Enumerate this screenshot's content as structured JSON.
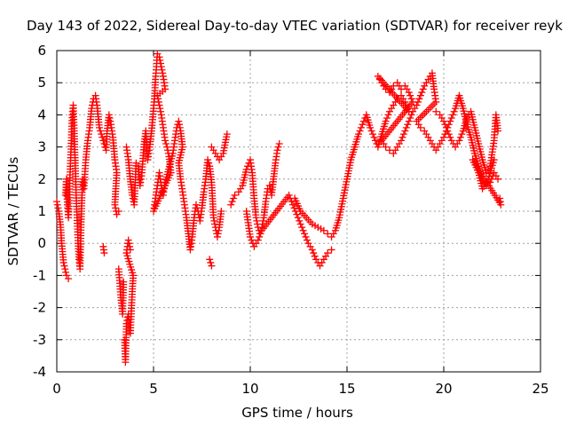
{
  "chart_data": {
    "type": "scatter",
    "title": "Day 143 of 2022, Sidereal Day-to-day VTEC variation (SDTVAR) for receiver reyk",
    "xlabel": "GPS time / hours",
    "ylabel": "SDTVAR / TECUs",
    "xlim": [
      0,
      25
    ],
    "ylim": [
      -4,
      6
    ],
    "xticks": [
      0,
      5,
      10,
      15,
      20,
      25
    ],
    "yticks": [
      -4,
      -3,
      -2,
      -1,
      0,
      1,
      2,
      3,
      4,
      5,
      6
    ],
    "grid": true,
    "marker": "+",
    "color": "#ff0000",
    "series": [
      {
        "name": "SDTVAR",
        "points": [
          [
            0.0,
            1.3
          ],
          [
            0.1,
            1.0
          ],
          [
            0.2,
            0.5
          ],
          [
            0.25,
            0.0
          ],
          [
            0.35,
            -0.6
          ],
          [
            0.5,
            -1.0
          ],
          [
            0.6,
            -1.1
          ],
          [
            0.45,
            1.5
          ],
          [
            0.5,
            2.0
          ],
          [
            0.55,
            1.2
          ],
          [
            0.6,
            0.8
          ],
          [
            0.65,
            1.6
          ],
          [
            0.7,
            2.4
          ],
          [
            0.75,
            3.2
          ],
          [
            0.8,
            4.0
          ],
          [
            0.85,
            4.3
          ],
          [
            0.9,
            3.5
          ],
          [
            0.95,
            2.5
          ],
          [
            1.0,
            1.5
          ],
          [
            1.05,
            0.8
          ],
          [
            1.1,
            0.0
          ],
          [
            1.15,
            -0.5
          ],
          [
            1.2,
            -0.8
          ],
          [
            1.25,
            0.5
          ],
          [
            1.3,
            1.5
          ],
          [
            1.35,
            2.0
          ],
          [
            1.4,
            1.7
          ],
          [
            1.5,
            2.6
          ],
          [
            1.6,
            3.2
          ],
          [
            1.7,
            3.6
          ],
          [
            1.8,
            4.2
          ],
          [
            1.9,
            4.5
          ],
          [
            2.0,
            4.6
          ],
          [
            2.1,
            4.2
          ],
          [
            2.2,
            3.6
          ],
          [
            2.3,
            3.4
          ],
          [
            2.4,
            3.2
          ],
          [
            2.5,
            3.0
          ],
          [
            2.4,
            -0.1
          ],
          [
            2.45,
            -0.3
          ],
          [
            2.55,
            2.9
          ],
          [
            2.6,
            3.5
          ],
          [
            2.7,
            4.0
          ],
          [
            2.8,
            3.7
          ],
          [
            2.9,
            3.3
          ],
          [
            3.0,
            2.6
          ],
          [
            3.1,
            2.2
          ],
          [
            3.0,
            1.2
          ],
          [
            3.1,
            0.9
          ],
          [
            3.2,
            1.0
          ],
          [
            3.2,
            -0.8
          ],
          [
            3.3,
            -1.6
          ],
          [
            3.4,
            -2.2
          ],
          [
            3.45,
            -1.2
          ],
          [
            3.5,
            -3.0
          ],
          [
            3.55,
            -3.7
          ],
          [
            3.6,
            -2.5
          ],
          [
            3.7,
            -2.2
          ],
          [
            3.8,
            -2.8
          ],
          [
            3.9,
            -1.5
          ],
          [
            3.95,
            -1.0
          ],
          [
            3.6,
            -0.3
          ],
          [
            3.7,
            0.1
          ],
          [
            3.8,
            -0.2
          ],
          [
            3.6,
            3.0
          ],
          [
            3.7,
            2.6
          ],
          [
            3.8,
            2.0
          ],
          [
            3.9,
            1.5
          ],
          [
            4.0,
            1.2
          ],
          [
            4.1,
            2.5
          ],
          [
            4.2,
            2.4
          ],
          [
            4.3,
            1.8
          ],
          [
            4.4,
            2.2
          ],
          [
            4.5,
            3.0
          ],
          [
            4.6,
            3.5
          ],
          [
            4.7,
            2.6
          ],
          [
            4.8,
            3.0
          ],
          [
            4.9,
            3.5
          ],
          [
            5.0,
            4.2
          ],
          [
            5.05,
            4.5
          ],
          [
            5.1,
            5.1
          ],
          [
            5.15,
            5.5
          ],
          [
            5.2,
            5.9
          ],
          [
            5.3,
            5.8
          ],
          [
            5.4,
            5.5
          ],
          [
            5.5,
            5.2
          ],
          [
            5.6,
            4.8
          ],
          [
            5.2,
            4.6
          ],
          [
            5.3,
            4.3
          ],
          [
            5.4,
            4.0
          ],
          [
            5.5,
            3.6
          ],
          [
            5.6,
            3.2
          ],
          [
            5.7,
            3.0
          ],
          [
            5.8,
            2.7
          ],
          [
            5.9,
            2.2
          ],
          [
            5.0,
            1.0
          ],
          [
            5.1,
            1.4
          ],
          [
            5.2,
            1.8
          ],
          [
            5.3,
            2.2
          ],
          [
            5.4,
            1.8
          ],
          [
            5.5,
            1.5
          ],
          [
            5.6,
            1.9
          ],
          [
            6.0,
            2.8
          ],
          [
            6.1,
            3.2
          ],
          [
            6.2,
            3.6
          ],
          [
            6.3,
            3.8
          ],
          [
            6.4,
            3.5
          ],
          [
            6.5,
            3.0
          ],
          [
            6.3,
            2.5
          ],
          [
            6.4,
            2.0
          ],
          [
            6.5,
            1.6
          ],
          [
            6.6,
            1.2
          ],
          [
            6.7,
            0.8
          ],
          [
            6.8,
            0.3
          ],
          [
            6.9,
            -0.2
          ],
          [
            7.0,
            0.2
          ],
          [
            7.1,
            0.8
          ],
          [
            7.2,
            1.2
          ],
          [
            7.3,
            1.0
          ],
          [
            7.4,
            0.7
          ],
          [
            7.5,
            1.1
          ],
          [
            7.6,
            1.6
          ],
          [
            7.7,
            2.0
          ],
          [
            7.8,
            2.6
          ],
          [
            7.9,
            2.4
          ],
          [
            8.0,
            1.9
          ],
          [
            8.1,
            0.8
          ],
          [
            8.2,
            0.5
          ],
          [
            8.3,
            0.2
          ],
          [
            8.4,
            0.5
          ],
          [
            8.5,
            1.0
          ],
          [
            8.0,
            3.0
          ],
          [
            8.2,
            2.8
          ],
          [
            8.4,
            2.6
          ],
          [
            8.6,
            2.8
          ],
          [
            8.8,
            3.4
          ],
          [
            7.9,
            -0.5
          ],
          [
            8.0,
            -0.7
          ],
          [
            9.0,
            1.2
          ],
          [
            9.2,
            1.5
          ],
          [
            9.4,
            1.6
          ],
          [
            9.6,
            1.8
          ],
          [
            9.8,
            2.3
          ],
          [
            10.0,
            2.6
          ],
          [
            10.1,
            2.2
          ],
          [
            10.2,
            1.4
          ],
          [
            10.3,
            0.8
          ],
          [
            10.4,
            0.5
          ],
          [
            10.5,
            0.3
          ],
          [
            10.6,
            0.5
          ],
          [
            10.7,
            0.8
          ],
          [
            10.8,
            1.3
          ],
          [
            10.9,
            1.7
          ],
          [
            11.0,
            1.8
          ],
          [
            11.1,
            1.5
          ],
          [
            11.2,
            2.0
          ],
          [
            11.3,
            2.5
          ],
          [
            11.4,
            2.9
          ],
          [
            11.5,
            3.1
          ],
          [
            9.8,
            1.0
          ],
          [
            10.0,
            0.2
          ],
          [
            10.2,
            -0.1
          ],
          [
            10.4,
            0.1
          ],
          [
            10.6,
            0.4
          ],
          [
            12.0,
            1.5
          ],
          [
            12.2,
            1.2
          ],
          [
            12.4,
            0.9
          ],
          [
            12.6,
            0.6
          ],
          [
            12.8,
            0.3
          ],
          [
            13.0,
            0.0
          ],
          [
            13.2,
            -0.2
          ],
          [
            13.4,
            -0.5
          ],
          [
            13.6,
            -0.7
          ],
          [
            13.8,
            -0.5
          ],
          [
            14.0,
            -0.3
          ],
          [
            14.2,
            -0.2
          ],
          [
            12.3,
            1.4
          ],
          [
            12.6,
            1.0
          ],
          [
            12.9,
            0.8
          ],
          [
            13.2,
            0.6
          ],
          [
            13.5,
            0.5
          ],
          [
            13.8,
            0.4
          ],
          [
            14.0,
            0.3
          ],
          [
            14.2,
            0.2
          ],
          [
            14.4,
            0.4
          ],
          [
            14.6,
            0.8
          ],
          [
            14.8,
            1.4
          ],
          [
            15.0,
            2.0
          ],
          [
            15.2,
            2.6
          ],
          [
            15.4,
            3.0
          ],
          [
            15.6,
            3.4
          ],
          [
            15.8,
            3.7
          ],
          [
            16.0,
            4.0
          ],
          [
            16.2,
            3.6
          ],
          [
            16.4,
            3.3
          ],
          [
            16.6,
            3.0
          ],
          [
            16.8,
            3.4
          ],
          [
            17.0,
            3.8
          ],
          [
            17.2,
            4.1
          ],
          [
            17.4,
            4.3
          ],
          [
            17.6,
            4.5
          ],
          [
            17.8,
            4.6
          ],
          [
            18.0,
            4.4
          ],
          [
            18.2,
            4.1
          ],
          [
            16.6,
            5.2
          ],
          [
            16.8,
            5.0
          ],
          [
            17.0,
            4.8
          ],
          [
            17.2,
            4.7
          ],
          [
            17.4,
            4.9
          ],
          [
            17.6,
            5.0
          ],
          [
            17.8,
            4.8
          ],
          [
            18.0,
            4.9
          ],
          [
            18.2,
            4.7
          ],
          [
            18.4,
            4.4
          ],
          [
            16.8,
            3.2
          ],
          [
            17.0,
            3.0
          ],
          [
            17.2,
            2.9
          ],
          [
            17.4,
            2.8
          ],
          [
            17.6,
            3.0
          ],
          [
            17.8,
            3.2
          ],
          [
            18.0,
            3.5
          ],
          [
            18.2,
            3.8
          ],
          [
            18.4,
            4.1
          ],
          [
            18.6,
            4.3
          ],
          [
            18.8,
            4.6
          ],
          [
            19.0,
            4.9
          ],
          [
            19.2,
            5.1
          ],
          [
            19.4,
            5.3
          ],
          [
            19.5,
            4.8
          ],
          [
            19.6,
            4.4
          ],
          [
            18.6,
            3.8
          ],
          [
            18.8,
            3.6
          ],
          [
            19.0,
            3.5
          ],
          [
            19.2,
            3.3
          ],
          [
            19.4,
            3.1
          ],
          [
            19.6,
            2.9
          ],
          [
            19.8,
            3.1
          ],
          [
            20.0,
            3.3
          ],
          [
            20.2,
            3.6
          ],
          [
            20.4,
            3.9
          ],
          [
            20.6,
            4.2
          ],
          [
            20.8,
            4.6
          ],
          [
            21.0,
            4.2
          ],
          [
            21.2,
            3.7
          ],
          [
            21.4,
            3.3
          ],
          [
            21.6,
            2.8
          ],
          [
            21.8,
            2.4
          ],
          [
            22.0,
            2.0
          ],
          [
            22.2,
            1.8
          ],
          [
            22.4,
            1.9
          ],
          [
            22.6,
            2.2
          ],
          [
            22.8,
            2.0
          ],
          [
            19.6,
            4.1
          ],
          [
            19.8,
            4.0
          ],
          [
            20.0,
            3.8
          ],
          [
            20.2,
            3.5
          ],
          [
            20.4,
            3.2
          ],
          [
            20.6,
            3.0
          ],
          [
            20.8,
            3.2
          ],
          [
            21.0,
            3.5
          ],
          [
            21.2,
            3.9
          ],
          [
            21.4,
            4.1
          ],
          [
            21.6,
            3.6
          ],
          [
            21.8,
            3.1
          ],
          [
            22.0,
            2.6
          ],
          [
            22.2,
            2.2
          ],
          [
            22.4,
            2.4
          ],
          [
            22.6,
            3.2
          ],
          [
            22.7,
            4.0
          ],
          [
            22.8,
            3.5
          ],
          [
            22.9,
            1.4
          ],
          [
            22.95,
            1.2
          ],
          [
            21.5,
            2.6
          ],
          [
            21.8,
            2.2
          ],
          [
            22.0,
            1.7
          ],
          [
            22.3,
            2.0
          ],
          [
            22.6,
            2.6
          ]
        ]
      }
    ]
  }
}
